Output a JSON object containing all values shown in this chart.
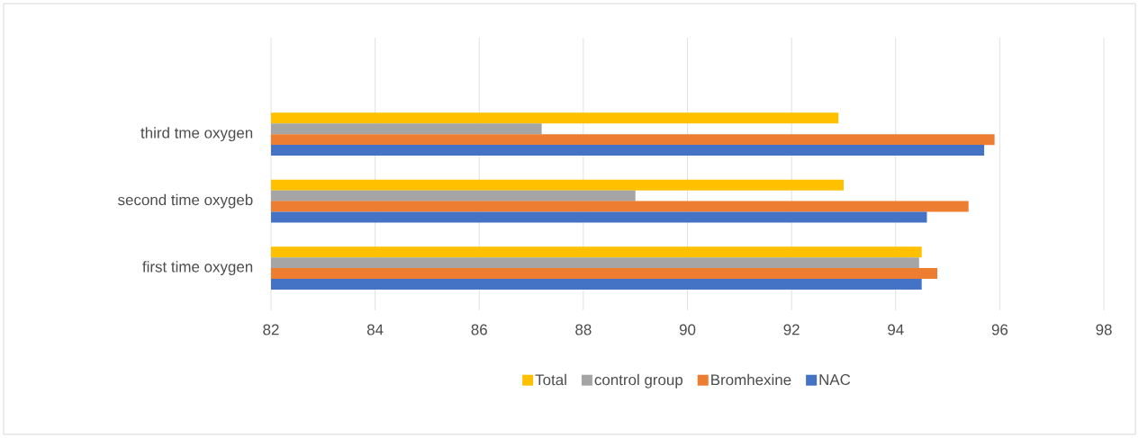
{
  "chart_data": {
    "type": "bar",
    "orientation": "horizontal",
    "categories": [
      "third tme oxygen",
      "second time oxygeb",
      "first time oxygen"
    ],
    "series": [
      {
        "name": "Total",
        "color": "#ffc000",
        "values": [
          92.9,
          93.0,
          94.5
        ]
      },
      {
        "name": "control group",
        "color": "#a5a5a5",
        "values": [
          87.2,
          89.0,
          94.45
        ]
      },
      {
        "name": "Bromhexine",
        "color": "#ed7d31",
        "values": [
          95.9,
          95.4,
          94.8
        ]
      },
      {
        "name": "NAC",
        "color": "#4472c4",
        "values": [
          95.7,
          94.6,
          94.5
        ]
      }
    ],
    "xlim": [
      82,
      98
    ],
    "xticks": [
      82,
      84,
      86,
      88,
      90,
      92,
      94,
      96,
      98
    ],
    "grid": "x",
    "legend": "bottom"
  }
}
